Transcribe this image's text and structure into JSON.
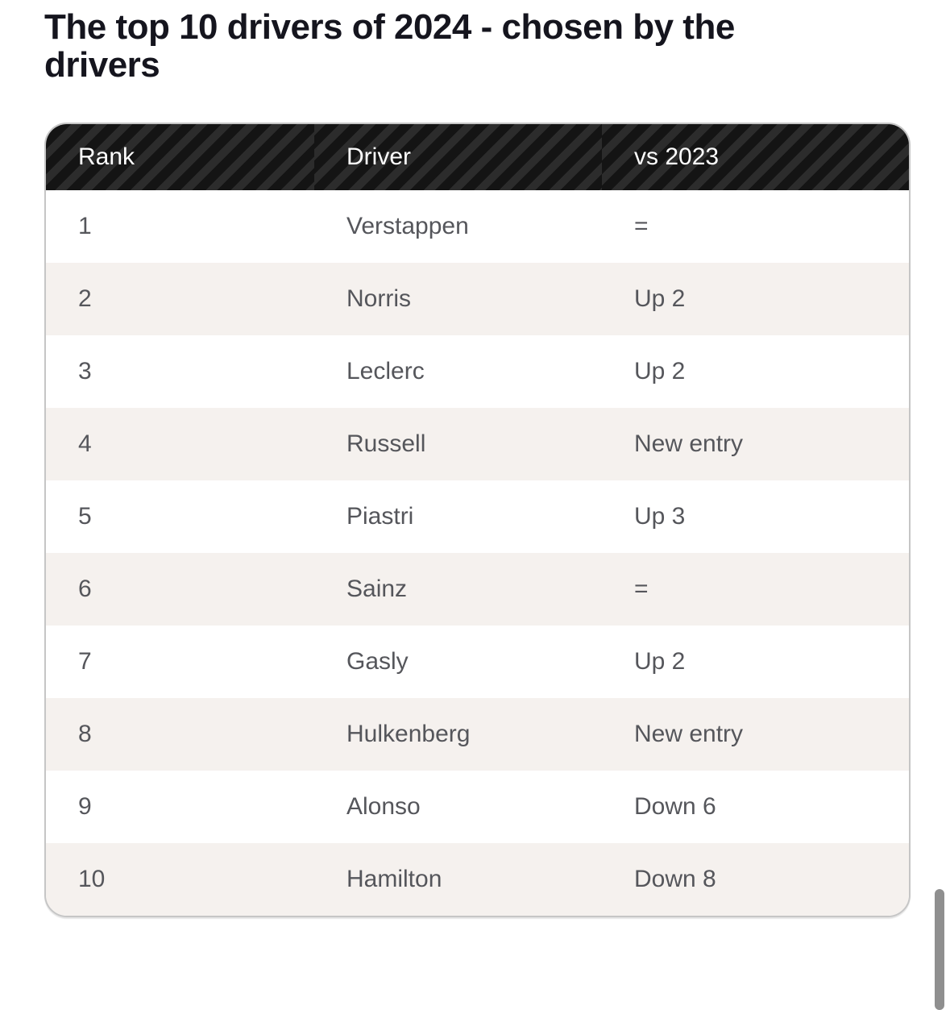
{
  "page_title": "The top 10 drivers of 2024 - chosen by the drivers",
  "table": {
    "columns": [
      "Rank",
      "Driver",
      "vs 2023"
    ],
    "rows": [
      {
        "rank": "1",
        "driver": "Verstappen",
        "vs_2023": "="
      },
      {
        "rank": "2",
        "driver": "Norris",
        "vs_2023": "Up 2"
      },
      {
        "rank": "3",
        "driver": "Leclerc",
        "vs_2023": "Up 2"
      },
      {
        "rank": "4",
        "driver": "Russell",
        "vs_2023": "New entry"
      },
      {
        "rank": "5",
        "driver": "Piastri",
        "vs_2023": "Up 3"
      },
      {
        "rank": "6",
        "driver": "Sainz",
        "vs_2023": "="
      },
      {
        "rank": "7",
        "driver": "Gasly",
        "vs_2023": "Up 2"
      },
      {
        "rank": "8",
        "driver": "Hulkenberg",
        "vs_2023": "New entry"
      },
      {
        "rank": "9",
        "driver": "Alonso",
        "vs_2023": "Down 6"
      },
      {
        "rank": "10",
        "driver": "Hamilton",
        "vs_2023": "Down 8"
      }
    ]
  },
  "colors": {
    "title_text": "#15151e",
    "header_stripe_dark": "#141414",
    "header_stripe_light": "#2c2c2c",
    "header_text": "#ffffff",
    "row_text": "#55565b",
    "row_alt_background": "#f5f1ee",
    "table_border": "#c6c6c6",
    "scrollbar": "#8f8f8f"
  }
}
